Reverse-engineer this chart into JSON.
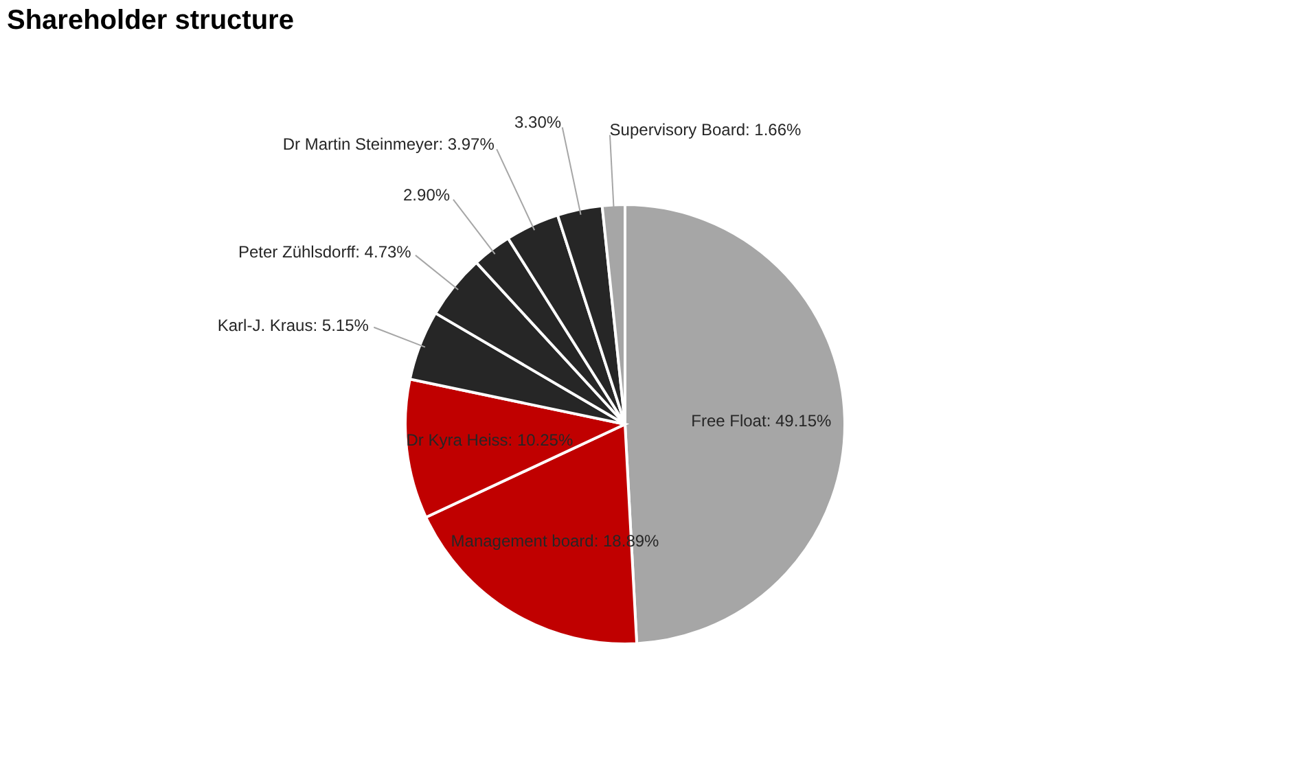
{
  "chart_data": {
    "type": "pie",
    "title": "Shareholder structure",
    "categories": [
      "Free Float",
      "Management board",
      "Dr Kyra Heiss",
      "Karl-J. Kraus",
      "Peter Zühlsdorff",
      null,
      "Dr Martin Steinmeyer",
      null,
      "Supervisory Board"
    ],
    "values": [
      49.15,
      18.89,
      10.25,
      5.15,
      4.73,
      2.9,
      3.97,
      3.3,
      1.66
    ],
    "value_labels": [
      "49.15%",
      "18.89%",
      "10.25%",
      "5.15%",
      "4.73%",
      "2.90%",
      "3.97%",
      "3.30%",
      "1.66%"
    ],
    "colors": [
      "#a6a6a6",
      "#c00000",
      "#c00000",
      "#262626",
      "#262626",
      "#262626",
      "#262626",
      "#262626",
      "#a6a6a6"
    ]
  }
}
